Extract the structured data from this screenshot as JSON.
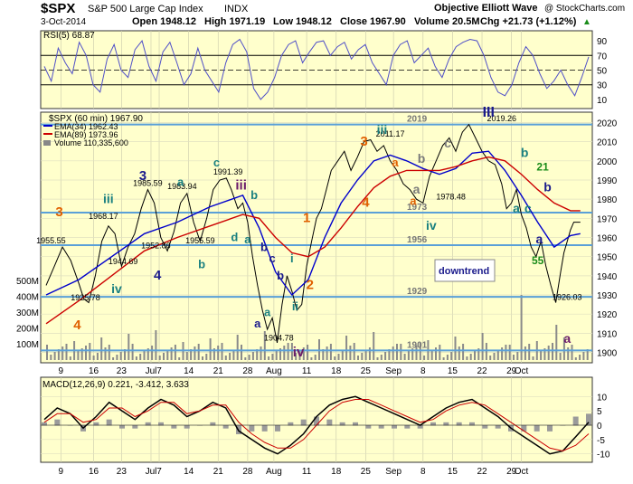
{
  "header": {
    "symbol": "$SPX",
    "name": "S&P 500 Large Cap Index",
    "exchange": "INDX",
    "date": "3-Oct-2014",
    "open": "Open 1948.12",
    "high": "High 1971.19",
    "low": "Low 1948.12",
    "close": "Close 1967.90",
    "volume": "Volume 20.5M",
    "change": "Chg +21.73 (+1.12%)",
    "source": "Objective Elliott Wave",
    "credit": "@ StockCharts.com",
    "arrow": "▲"
  },
  "colors": {
    "panel_bg": "#ffffcc",
    "price_line": "#000000",
    "ema34": "#0000cc",
    "ema89": "#cc0000",
    "rsi_line": "#5050c8",
    "level_line": "#5aa0d8",
    "label_orange": "#e06000",
    "label_teal": "#1a8080",
    "label_navy": "#1a1a8c",
    "label_purple": "#6a1a6a",
    "label_gray": "#7a7a7a",
    "label_green": "#1a8c1a"
  },
  "rsi_panel": {
    "label": "RSI(5) 68.87",
    "ticks": [
      "90",
      "70",
      "50",
      "30",
      "10"
    ],
    "levels": [
      70,
      30
    ]
  },
  "price_panel": {
    "legend": {
      "price": "$SPX (60 min) 1967.90",
      "ema34": "EMA(34) 1962.43",
      "ema89": "EMA(89) 1973.96",
      "volume": "Volume 110,335,600"
    },
    "volume_ticks": [
      "500M",
      "400M",
      "300M",
      "200M",
      "100M"
    ],
    "price_ticks": [
      "2020",
      "2010",
      "2000",
      "1990",
      "1980",
      "1970",
      "1960",
      "1950",
      "1940",
      "1930",
      "1920",
      "1910",
      "1900"
    ],
    "level_lines": [
      {
        "value": 2019,
        "label": "2019"
      },
      {
        "value": 1973,
        "label": "1973"
      },
      {
        "value": 1956,
        "label": "1956"
      },
      {
        "value": 1929,
        "label": "1929"
      },
      {
        "value": 1901,
        "label": "1901"
      }
    ],
    "box_label": "downtrend",
    "price_labels": [
      {
        "text": "1955.55",
        "x": 0.3,
        "y": 1955.55
      },
      {
        "text": "1925.78",
        "x": 2.4,
        "y": 1925.78
      },
      {
        "text": "1968.17",
        "x": 3.5,
        "y": 1968.17
      },
      {
        "text": "1944.69",
        "x": 4.7,
        "y": 1944.69
      },
      {
        "text": "1985.59",
        "x": 6.2,
        "y": 1985.59
      },
      {
        "text": "1952.86",
        "x": 6.7,
        "y": 1952.86
      },
      {
        "text": "1983.94",
        "x": 8.3,
        "y": 1983.94
      },
      {
        "text": "1955.59",
        "x": 9.4,
        "y": 1955.59
      },
      {
        "text": "1991.39",
        "x": 11.1,
        "y": 1991.39
      },
      {
        "text": "1904.78",
        "x": 14.2,
        "y": 1904.78
      },
      {
        "text": "2011.17",
        "x": 21.0,
        "y": 2011.17
      },
      {
        "text": "1978.48",
        "x": 24.7,
        "y": 1978.48
      },
      {
        "text": "2019.26",
        "x": 27.8,
        "y": 2019.26
      },
      {
        "text": "1926.03",
        "x": 31.8,
        "y": 1926.03
      }
    ],
    "wave_labels": [
      {
        "text": "3",
        "x": 0.8,
        "y": 1971,
        "color": "orange",
        "size": 15
      },
      {
        "text": "4",
        "x": 1.9,
        "y": 1912,
        "color": "orange",
        "size": 15
      },
      {
        "text": "iii",
        "x": 3.8,
        "y": 1978,
        "color": "teal",
        "size": 14
      },
      {
        "text": "iv",
        "x": 4.3,
        "y": 1931,
        "color": "teal",
        "size": 14
      },
      {
        "text": "3",
        "x": 5.9,
        "y": 1990,
        "color": "navy",
        "size": 15
      },
      {
        "text": "4",
        "x": 6.8,
        "y": 1938,
        "color": "navy",
        "size": 15
      },
      {
        "text": "a",
        "x": 8.2,
        "y": 1987,
        "color": "teal",
        "size": 13
      },
      {
        "text": "b",
        "x": 9.5,
        "y": 1944,
        "color": "teal",
        "size": 13
      },
      {
        "text": "c",
        "x": 10.4,
        "y": 1997,
        "color": "teal",
        "size": 13
      },
      {
        "text": "iii",
        "x": 11.9,
        "y": 1985,
        "color": "purple",
        "size": 15
      },
      {
        "text": "b",
        "x": 12.7,
        "y": 1980,
        "color": "teal",
        "size": 13
      },
      {
        "text": "d",
        "x": 11.5,
        "y": 1958,
        "color": "teal",
        "size": 13
      },
      {
        "text": "a",
        "x": 12.3,
        "y": 1957,
        "color": "teal",
        "size": 13
      },
      {
        "text": "b",
        "x": 13.3,
        "y": 1953,
        "color": "navy",
        "size": 13
      },
      {
        "text": "c",
        "x": 13.8,
        "y": 1947,
        "color": "navy",
        "size": 13
      },
      {
        "text": "a",
        "x": 13.5,
        "y": 1919,
        "color": "teal",
        "size": 13
      },
      {
        "text": "a",
        "x": 12.9,
        "y": 1913,
        "color": "navy",
        "size": 13
      },
      {
        "text": "b",
        "x": 14.3,
        "y": 1938,
        "color": "navy",
        "size": 13
      },
      {
        "text": "i",
        "x": 15.0,
        "y": 1947,
        "color": "teal",
        "size": 13
      },
      {
        "text": "ii",
        "x": 15.2,
        "y": 1922,
        "color": "teal",
        "size": 13
      },
      {
        "text": "iv",
        "x": 15.4,
        "y": 1898,
        "color": "purple",
        "size": 15
      },
      {
        "text": "1",
        "x": 15.9,
        "y": 1968,
        "color": "orange",
        "size": 15
      },
      {
        "text": "2",
        "x": 16.1,
        "y": 1933,
        "color": "orange",
        "size": 15
      },
      {
        "text": "3",
        "x": 19.4,
        "y": 2008,
        "color": "orange",
        "size": 15
      },
      {
        "text": "4",
        "x": 19.5,
        "y": 1976,
        "color": "orange",
        "size": 15
      },
      {
        "text": "iii",
        "x": 20.5,
        "y": 2014,
        "color": "teal",
        "size": 14
      },
      {
        "text": "a",
        "x": 21.3,
        "y": 1997,
        "color": "orange",
        "size": 13
      },
      {
        "text": "a",
        "x": 22.4,
        "y": 1977,
        "color": "orange",
        "size": 13
      },
      {
        "text": "b",
        "x": 22.9,
        "y": 1999,
        "color": "gray",
        "size": 14
      },
      {
        "text": "c",
        "x": 24.5,
        "y": 2007,
        "color": "gray",
        "size": 14
      },
      {
        "text": "a",
        "x": 22.6,
        "y": 1983,
        "color": "gray",
        "size": 14
      },
      {
        "text": "iv",
        "x": 23.5,
        "y": 1964,
        "color": "teal",
        "size": 14
      },
      {
        "text": "III",
        "x": 27.0,
        "y": 2023,
        "color": "navy",
        "size": 16
      },
      {
        "text": "b",
        "x": 29.2,
        "y": 2002,
        "color": "teal",
        "size": 14
      },
      {
        "text": "21",
        "x": 30.3,
        "y": 1995,
        "color": "green",
        "size": 12
      },
      {
        "text": "b",
        "x": 30.6,
        "y": 1984,
        "color": "navy",
        "size": 14
      },
      {
        "text": "a",
        "x": 28.7,
        "y": 1973,
        "color": "teal",
        "size": 14
      },
      {
        "text": "c",
        "x": 29.4,
        "y": 1973,
        "color": "teal",
        "size": 14
      },
      {
        "text": "a",
        "x": 30.1,
        "y": 1957,
        "color": "navy",
        "size": 14
      },
      {
        "text": "55",
        "x": 30.0,
        "y": 1946,
        "color": "green",
        "size": 12
      },
      {
        "text": "a",
        "x": 31.8,
        "y": 1905,
        "color": "purple",
        "size": 14
      }
    ]
  },
  "macd_panel": {
    "label": "MACD(12,26,9) 0.221, -3.412, 3.633",
    "ticks": [
      "10",
      "5",
      "0",
      "-5",
      "-10"
    ]
  },
  "x_axis": {
    "labels": [
      {
        "text": "9",
        "pos": 0.9
      },
      {
        "text": "16",
        "pos": 2.9
      },
      {
        "text": "23",
        "pos": 4.6
      },
      {
        "text": "Jul",
        "pos": 6.4
      },
      {
        "text": "7",
        "pos": 6.9
      },
      {
        "text": "14",
        "pos": 8.7
      },
      {
        "text": "21",
        "pos": 10.5
      },
      {
        "text": "28",
        "pos": 12.3
      },
      {
        "text": "Aug",
        "pos": 13.9
      },
      {
        "text": "11",
        "pos": 15.9
      },
      {
        "text": "18",
        "pos": 17.7
      },
      {
        "text": "25",
        "pos": 19.5
      },
      {
        "text": "Sep",
        "pos": 21.2
      },
      {
        "text": "8",
        "pos": 23.0
      },
      {
        "text": "15",
        "pos": 24.8
      },
      {
        "text": "22",
        "pos": 26.6
      },
      {
        "text": "29",
        "pos": 28.4
      },
      {
        "text": "Oct",
        "pos": 29.0
      }
    ]
  },
  "chart_data": {
    "type": "line",
    "title": "$SPX S&P 500 Large Cap Index INDX",
    "series": [
      {
        "name": "$SPX (60 min)",
        "x": [
          0,
          0.5,
          1,
          1.5,
          2,
          2.3,
          2.6,
          3,
          3.4,
          3.8,
          4.2,
          4.6,
          5,
          5.4,
          5.8,
          6.2,
          6.6,
          7,
          7.4,
          7.8,
          8.2,
          8.6,
          9,
          9.4,
          9.8,
          10.2,
          10.6,
          11,
          11.3,
          11.7,
          12,
          12.3,
          12.6,
          12.9,
          13.2,
          13.5,
          13.8,
          14.1,
          14.4,
          14.7,
          15,
          15.3,
          15.6,
          15.9,
          16.2,
          16.5,
          16.8,
          17.1,
          17.4,
          17.8,
          18.2,
          18.6,
          19,
          19.4,
          19.8,
          20.2,
          20.6,
          21,
          21.4,
          21.8,
          22.2,
          22.6,
          23,
          23.4,
          23.8,
          24.2,
          24.6,
          25,
          25.4,
          25.8,
          26.2,
          26.6,
          27,
          27.4,
          27.8,
          28.1,
          28.4,
          28.7,
          29,
          29.3,
          29.6,
          29.9,
          30.2,
          30.5,
          30.8,
          31.1,
          31.4,
          31.6,
          31.8,
          32,
          32.2,
          32.4,
          32.6
        ],
        "values": [
          1935,
          1945,
          1955,
          1948,
          1936,
          1928,
          1926,
          1940,
          1958,
          1966,
          1962,
          1945,
          1955,
          1962,
          1975,
          1985,
          1978,
          1960,
          1953,
          1963,
          1978,
          1983,
          1968,
          1958,
          1970,
          1985,
          1990,
          1991,
          1985,
          1975,
          1978,
          1968,
          1950,
          1935,
          1922,
          1912,
          1918,
          1905,
          1925,
          1940,
          1932,
          1922,
          1925,
          1945,
          1958,
          1970,
          1975,
          1985,
          1995,
          2000,
          2005,
          1995,
          2002,
          2010,
          2011,
          2005,
          2008,
          2000,
          1995,
          1988,
          1985,
          1980,
          1978,
          1992,
          2000,
          2008,
          2012,
          2005,
          2015,
          2019,
          2012,
          2005,
          2000,
          1998,
          1988,
          1975,
          1978,
          1985,
          1972,
          1965,
          1955,
          1950,
          1958,
          1945,
          1935,
          1926,
          1942,
          1952,
          1958,
          1964,
          1968,
          1968,
          1968
        ]
      },
      {
        "name": "EMA(34)",
        "x": [
          0,
          2,
          4,
          6,
          8,
          10,
          12,
          13,
          14,
          15,
          16,
          17,
          18,
          19,
          20,
          21,
          22,
          23,
          24,
          25,
          26,
          27,
          28,
          29,
          30,
          31,
          32,
          32.6
        ],
        "values": [
          1930,
          1938,
          1950,
          1962,
          1968,
          1976,
          1982,
          1965,
          1942,
          1930,
          1938,
          1960,
          1978,
          1990,
          2000,
          2003,
          2000,
          1996,
          1993,
          1996,
          2004,
          2005,
          1995,
          1982,
          1968,
          1955,
          1961,
          1962
        ]
      },
      {
        "name": "EMA(89)",
        "x": [
          0,
          2,
          4,
          6,
          8,
          10,
          12,
          13,
          14,
          15,
          16,
          17,
          18,
          19,
          20,
          21,
          22,
          23,
          24,
          25,
          26,
          27,
          28,
          29,
          30,
          31,
          32,
          32.6
        ],
        "values": [
          1915,
          1927,
          1940,
          1953,
          1960,
          1966,
          1972,
          1970,
          1960,
          1952,
          1950,
          1955,
          1965,
          1976,
          1986,
          1992,
          1995,
          1995,
          1995,
          1997,
          2000,
          2002,
          2000,
          1993,
          1985,
          1978,
          1974,
          1974
        ]
      }
    ],
    "rsi_values": [
      55,
      35,
      80,
      60,
      45,
      88,
      70,
      30,
      20,
      65,
      85,
      50,
      40,
      78,
      90,
      55,
      35,
      75,
      88,
      60,
      30,
      45,
      80,
      50,
      35,
      20,
      60,
      85,
      92,
      75,
      25,
      10,
      20,
      40,
      70,
      85,
      90,
      60,
      75,
      88,
      90,
      70,
      82,
      88,
      65,
      78,
      85,
      60,
      45,
      30,
      70,
      85,
      90,
      60,
      70,
      80,
      55,
      40,
      65,
      82,
      88,
      92,
      90,
      70,
      40,
      20,
      15,
      30,
      60,
      82,
      70,
      45,
      25,
      35,
      50,
      30,
      15,
      40,
      68
    ],
    "macd_line": [
      2,
      6,
      4,
      -1,
      3,
      8,
      5,
      2,
      6,
      9,
      7,
      3,
      5,
      8,
      6,
      -2,
      -5,
      -8,
      -10,
      -7,
      -3,
      3,
      7,
      9,
      10,
      8,
      6,
      4,
      2,
      0,
      3,
      6,
      8,
      9,
      6,
      3,
      -1,
      -4,
      -7,
      -10,
      -9,
      -4,
      1
    ],
    "macd_signal": [
      1,
      4,
      4,
      1,
      2,
      6,
      6,
      3,
      5,
      8,
      8,
      4,
      5,
      7,
      7,
      1,
      -3,
      -6,
      -8,
      -8,
      -5,
      0,
      5,
      8,
      9,
      9,
      7,
      5,
      3,
      1,
      2,
      5,
      7,
      8,
      7,
      4,
      1,
      -2,
      -5,
      -8,
      -9,
      -7,
      -3
    ],
    "xlim": [
      0,
      33
    ],
    "ylim": [
      1896,
      2024
    ],
    "grid": true
  }
}
